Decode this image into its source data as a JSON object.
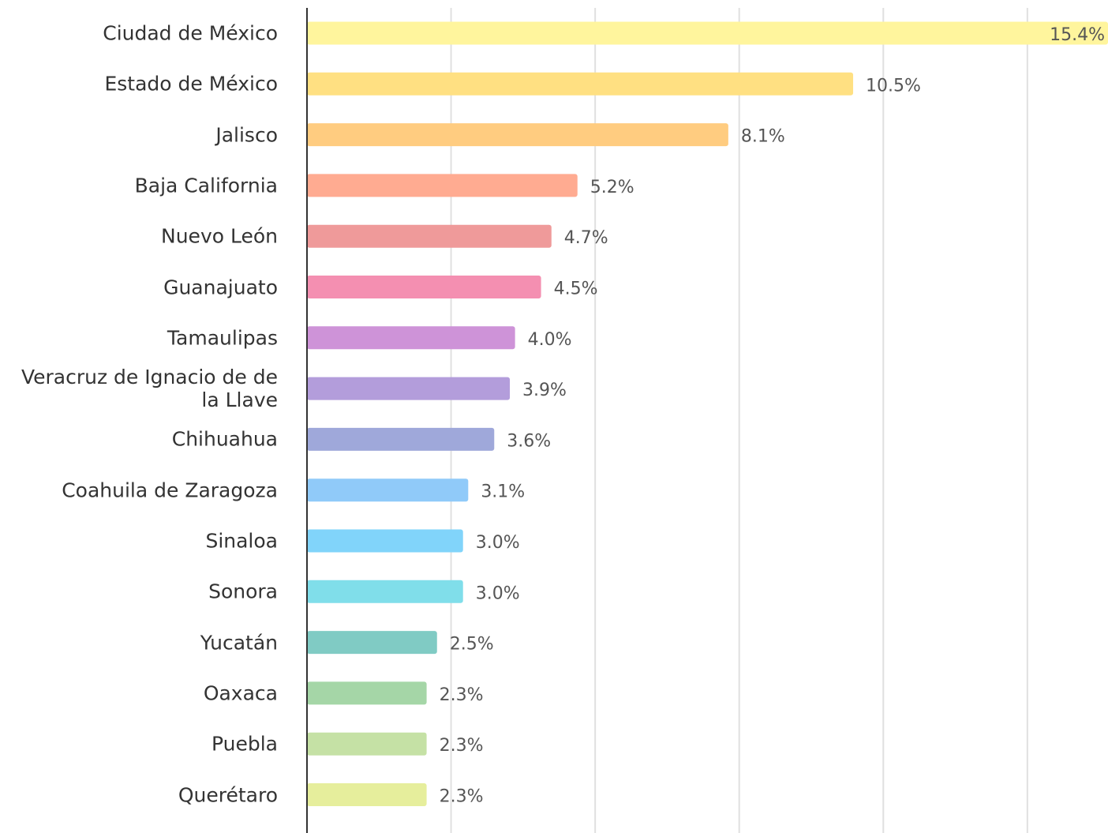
{
  "chart_data": {
    "type": "bar",
    "orientation": "horizontal",
    "categories": [
      "Ciudad de México",
      "Estado de México",
      "Jalisco",
      "Baja California",
      "Nuevo León",
      "Guanajuato",
      "Tamaulipas",
      "Veracruz de Ignacio de de la Llave",
      "Chihuahua",
      "Coahuila de Zaragoza",
      "Sinaloa",
      "Sonora",
      "Yucatán",
      "Oaxaca",
      "Puebla",
      "Querétaro"
    ],
    "values": [
      15.4,
      10.5,
      8.1,
      5.2,
      4.7,
      4.5,
      4.0,
      3.9,
      3.6,
      3.1,
      3.0,
      3.0,
      2.5,
      2.3,
      2.3,
      2.3
    ],
    "value_labels": [
      "15.4%",
      "10.5%",
      "8.1%",
      "5.2%",
      "4.7%",
      "4.5%",
      "4.0%",
      "3.9%",
      "3.6%",
      "3.1%",
      "3.0%",
      "3.0%",
      "2.5%",
      "2.3%",
      "2.3%",
      "2.3%"
    ],
    "colors": [
      "#fff59d",
      "#ffe082",
      "#ffcc80",
      "#ffab91",
      "#ef9a9a",
      "#f48fb1",
      "#ce93d8",
      "#b39ddb",
      "#9fa8da",
      "#90caf9",
      "#81d4fa",
      "#80deea",
      "#80cbc4",
      "#a5d6a7",
      "#c5e1a5",
      "#e6ee9c"
    ],
    "xlim": [
      0,
      15.4
    ],
    "xticks": [
      2.77,
      5.54,
      8.31,
      11.08,
      13.85
    ],
    "grid": true
  }
}
